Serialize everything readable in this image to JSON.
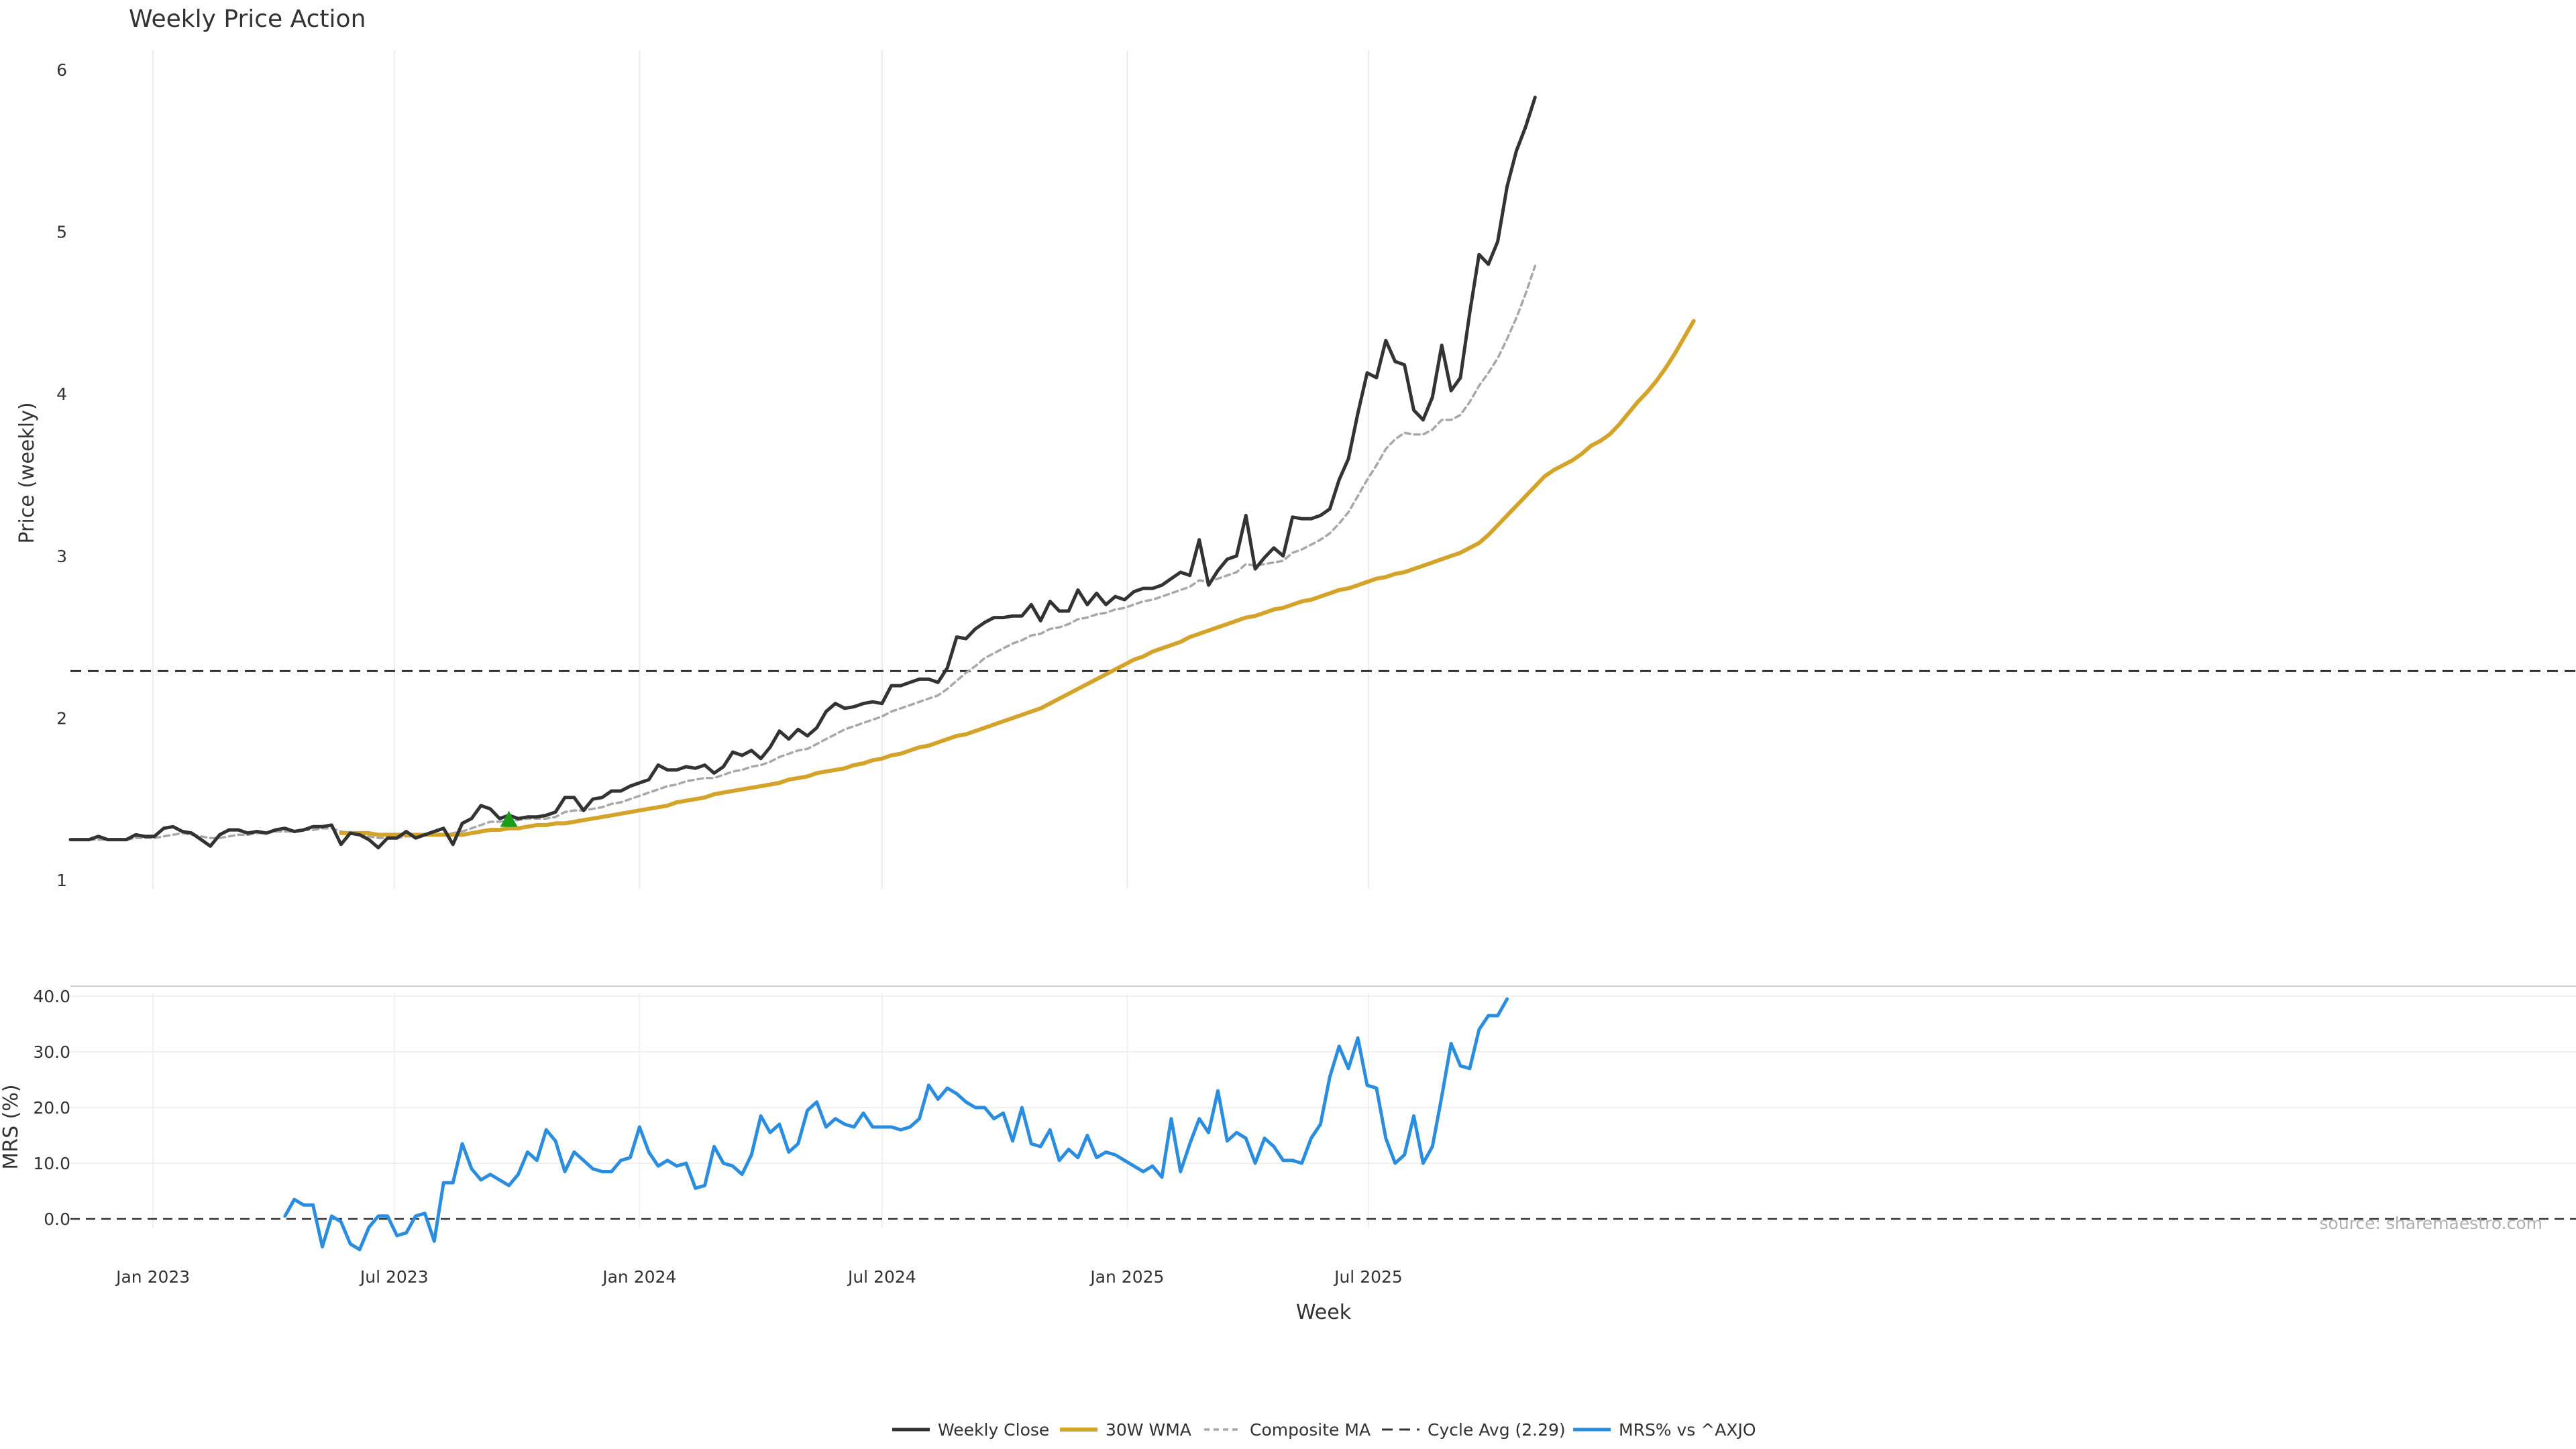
{
  "chart_data": [
    {
      "type": "line",
      "title": "Weekly Price Action",
      "ylabel": "Price (weekly)",
      "ylim": [
        1,
        6
      ],
      "yticks": [
        1,
        2,
        3,
        4,
        5,
        6
      ],
      "grid": "vertical",
      "hline": {
        "name": "Cycle Avg (2.29)",
        "value": 2.29
      },
      "marker": {
        "shape": "triangle-up",
        "color": "#1a9e1a",
        "x": "2023-09-25",
        "y": 1.37
      },
      "x_start": "2022-10-31",
      "x_step_days": 7,
      "series": [
        {
          "name": "Weekly Close",
          "color": "#333333",
          "start_index": 0,
          "values": [
            1.25,
            1.25,
            1.25,
            1.27,
            1.25,
            1.25,
            1.25,
            1.28,
            1.27,
            1.27,
            1.32,
            1.33,
            1.3,
            1.29,
            1.25,
            1.21,
            1.28,
            1.31,
            1.31,
            1.29,
            1.3,
            1.29,
            1.31,
            1.32,
            1.3,
            1.31,
            1.33,
            1.33,
            1.34,
            1.22,
            1.29,
            1.28,
            1.25,
            1.2,
            1.26,
            1.26,
            1.3,
            1.26,
            1.28,
            1.3,
            1.32,
            1.22,
            1.35,
            1.38,
            1.46,
            1.44,
            1.38,
            1.4,
            1.38,
            1.39,
            1.39,
            1.4,
            1.42,
            1.51,
            1.51,
            1.43,
            1.5,
            1.51,
            1.55,
            1.55,
            1.58,
            1.6,
            1.62,
            1.71,
            1.68,
            1.68,
            1.7,
            1.69,
            1.71,
            1.66,
            1.7,
            1.79,
            1.77,
            1.8,
            1.75,
            1.82,
            1.92,
            1.87,
            1.93,
            1.89,
            1.94,
            2.04,
            2.09,
            2.06,
            2.07,
            2.09,
            2.1,
            2.09,
            2.2,
            2.2,
            2.22,
            2.24,
            2.24,
            2.22,
            2.31,
            2.5,
            2.49,
            2.55,
            2.59,
            2.62,
            2.62,
            2.63,
            2.63,
            2.7,
            2.6,
            2.72,
            2.66,
            2.66,
            2.79,
            2.7,
            2.77,
            2.7,
            2.75,
            2.73,
            2.78,
            2.8,
            2.8,
            2.82,
            2.86,
            2.9,
            2.88,
            3.1,
            2.82,
            2.91,
            2.98,
            3.0,
            3.25,
            2.92,
            2.99,
            3.05,
            3.0,
            3.24,
            3.23,
            3.23,
            3.25,
            3.29,
            3.47,
            3.6,
            3.88,
            4.13,
            4.1,
            4.33,
            4.2,
            4.18,
            3.9,
            3.84,
            3.98,
            4.3,
            4.02,
            4.1,
            4.5,
            4.86,
            4.8,
            4.94,
            5.28,
            5.5,
            5.65,
            5.83
          ]
        },
        {
          "name": "30W WMA",
          "color": "#d4a32a",
          "start_index": 29,
          "values": [
            1.29,
            1.29,
            1.29,
            1.29,
            1.28,
            1.28,
            1.28,
            1.28,
            1.28,
            1.28,
            1.28,
            1.28,
            1.28,
            1.28,
            1.29,
            1.3,
            1.31,
            1.31,
            1.32,
            1.32,
            1.33,
            1.34,
            1.34,
            1.35,
            1.35,
            1.36,
            1.37,
            1.38,
            1.39,
            1.4,
            1.41,
            1.42,
            1.43,
            1.44,
            1.45,
            1.46,
            1.48,
            1.49,
            1.5,
            1.51,
            1.53,
            1.54,
            1.55,
            1.56,
            1.57,
            1.58,
            1.59,
            1.6,
            1.62,
            1.63,
            1.64,
            1.66,
            1.67,
            1.68,
            1.69,
            1.71,
            1.72,
            1.74,
            1.75,
            1.77,
            1.78,
            1.8,
            1.82,
            1.83,
            1.85,
            1.87,
            1.89,
            1.9,
            1.92,
            1.94,
            1.96,
            1.98,
            2.0,
            2.02,
            2.04,
            2.06,
            2.09,
            2.12,
            2.15,
            2.18,
            2.21,
            2.24,
            2.27,
            2.3,
            2.33,
            2.36,
            2.38,
            2.41,
            2.43,
            2.45,
            2.47,
            2.5,
            2.52,
            2.54,
            2.56,
            2.58,
            2.6,
            2.62,
            2.63,
            2.65,
            2.67,
            2.68,
            2.7,
            2.72,
            2.73,
            2.75,
            2.77,
            2.79,
            2.8,
            2.82,
            2.84,
            2.86,
            2.87,
            2.89,
            2.9,
            2.92,
            2.94,
            2.96,
            2.98,
            3.0,
            3.02,
            3.05,
            3.08,
            3.13,
            3.19,
            3.25,
            3.31,
            3.37,
            3.43,
            3.49,
            3.53,
            3.56,
            3.59,
            3.63,
            3.68,
            3.71,
            3.75,
            3.81,
            3.88,
            3.95,
            4.01,
            4.08,
            4.16,
            4.25,
            4.35,
            4.45
          ]
        },
        {
          "name": "Composite MA",
          "color": "#a8a8a8",
          "start_index": 0,
          "values": [
            1.25,
            1.25,
            1.25,
            1.25,
            1.25,
            1.25,
            1.25,
            1.26,
            1.26,
            1.26,
            1.27,
            1.28,
            1.29,
            1.28,
            1.27,
            1.26,
            1.26,
            1.27,
            1.28,
            1.28,
            1.29,
            1.29,
            1.3,
            1.3,
            1.3,
            1.31,
            1.31,
            1.32,
            1.32,
            1.3,
            1.29,
            1.28,
            1.27,
            1.26,
            1.26,
            1.26,
            1.27,
            1.27,
            1.28,
            1.28,
            1.28,
            1.29,
            1.3,
            1.32,
            1.34,
            1.36,
            1.36,
            1.37,
            1.37,
            1.38,
            1.38,
            1.38,
            1.39,
            1.42,
            1.43,
            1.43,
            1.44,
            1.45,
            1.47,
            1.48,
            1.5,
            1.52,
            1.54,
            1.56,
            1.58,
            1.59,
            1.61,
            1.62,
            1.63,
            1.63,
            1.65,
            1.67,
            1.68,
            1.7,
            1.71,
            1.73,
            1.76,
            1.78,
            1.8,
            1.81,
            1.84,
            1.87,
            1.9,
            1.93,
            1.95,
            1.97,
            1.99,
            2.01,
            2.04,
            2.06,
            2.08,
            2.1,
            2.12,
            2.14,
            2.18,
            2.23,
            2.28,
            2.32,
            2.37,
            2.4,
            2.43,
            2.46,
            2.48,
            2.51,
            2.52,
            2.55,
            2.56,
            2.58,
            2.61,
            2.62,
            2.64,
            2.65,
            2.67,
            2.68,
            2.7,
            2.72,
            2.73,
            2.75,
            2.77,
            2.79,
            2.81,
            2.85,
            2.84,
            2.86,
            2.88,
            2.9,
            2.95,
            2.94,
            2.95,
            2.96,
            2.97,
            3.02,
            3.04,
            3.07,
            3.1,
            3.14,
            3.2,
            3.27,
            3.37,
            3.47,
            3.56,
            3.66,
            3.72,
            3.76,
            3.75,
            3.75,
            3.78,
            3.84,
            3.84,
            3.87,
            3.95,
            4.05,
            4.13,
            4.22,
            4.34,
            4.47,
            4.62,
            4.79
          ]
        }
      ]
    },
    {
      "type": "line",
      "ylabel": "MRS (%)",
      "xlabel": "Week",
      "ylim": [
        -5,
        42
      ],
      "yticks": [
        "0.0",
        "10.0",
        "20.0",
        "30.0",
        "40.0"
      ],
      "grid": "both",
      "hline": {
        "value": 0
      },
      "x_start": "2022-10-31",
      "x_step_days": 7,
      "xticks": [
        {
          "x": "2023-01-01",
          "label": "Jan 2023"
        },
        {
          "x": "2023-07-01",
          "label": "Jul 2023"
        },
        {
          "x": "2024-01-01",
          "label": "Jan 2024"
        },
        {
          "x": "2024-07-01",
          "label": "Jul 2024"
        },
        {
          "x": "2025-01-01",
          "label": "Jan 2025"
        },
        {
          "x": "2025-07-01",
          "label": "Jul 2025"
        }
      ],
      "annotation": "source: sharemaestro.com",
      "series": [
        {
          "name": "MRS% vs ^AXJO",
          "color": "#2a8de0",
          "start_index": 23,
          "values": [
            0.5,
            3.5,
            2.5,
            2.5,
            -5,
            0.5,
            -0.5,
            -4.5,
            -5.5,
            -1.5,
            0.5,
            0.5,
            -3,
            -2.5,
            0.5,
            1,
            -4,
            6.5,
            6.5,
            13.5,
            9,
            7,
            8,
            7,
            6,
            8,
            12,
            10.5,
            16,
            14,
            8.5,
            12,
            10.5,
            9,
            8.5,
            8.5,
            10.5,
            11,
            16.5,
            12,
            9.5,
            10.5,
            9.5,
            10,
            5.5,
            6,
            13,
            10,
            9.5,
            8,
            11.5,
            18.5,
            15.5,
            17,
            12,
            13.5,
            19.5,
            21,
            16.5,
            18,
            17,
            16.5,
            19,
            16.5,
            16.5,
            16.5,
            16,
            16.5,
            18,
            24,
            21.5,
            23.5,
            22.5,
            21,
            20,
            20,
            18,
            19,
            14,
            20,
            13.5,
            13,
            16,
            10.5,
            12.5,
            11,
            15,
            11,
            12,
            11.5,
            10.5,
            9.5,
            8.5,
            9.5,
            7.5,
            18,
            8.5,
            13.5,
            18,
            15.5,
            23,
            14,
            15.5,
            14.5,
            10,
            14.5,
            13,
            10.5,
            10.5,
            10,
            14.5,
            17,
            25.5,
            31,
            27,
            32.5,
            24,
            23.5,
            14.5,
            10,
            11.5,
            18.5,
            10,
            13,
            22,
            31.5,
            27.5,
            27,
            34,
            36.5,
            36.5,
            39.5
          ]
        }
      ]
    }
  ],
  "legend": [
    {
      "label": "Weekly Close",
      "color": "#333333",
      "style": "solid-dark"
    },
    {
      "label": "30W WMA",
      "color": "#d4a32a",
      "style": "solid-thick"
    },
    {
      "label": "Composite MA",
      "color": "#a8a8a8",
      "style": "dotted"
    },
    {
      "label": "Cycle Avg (2.29)",
      "color": "#333333",
      "style": "dashed"
    },
    {
      "label": "MRS% vs ^AXJO",
      "color": "#2a8de0",
      "style": "solid"
    }
  ],
  "legend_position": "bottom-center"
}
